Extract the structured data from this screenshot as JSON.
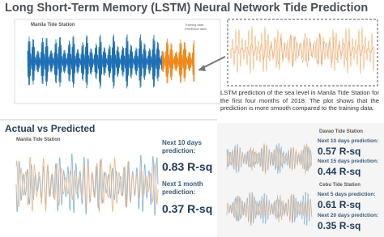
{
  "header": {
    "title": "Long Short-Term Memory (LSTM) Neural Network Tide Prediction"
  },
  "main_chart": {
    "title": "Manila Tide Station",
    "legend": [
      "Training data",
      "Prediction data"
    ]
  },
  "description": "LSTM prediction of the sea level in Manila Tide Station for the first four months of 2018. The plot shows that the prediction is more smooth compared to the training data.",
  "actual_vs_predicted": {
    "heading": "Actual vs Predicted",
    "station": "Manila Tide Station",
    "metrics": [
      {
        "label": "Next 10 days prediction:",
        "value": "0.83 R-sq"
      },
      {
        "label": "Next 1 month prediction:",
        "value": "0.37 R-sq"
      }
    ]
  },
  "davao": {
    "station": "Davao Tide Station",
    "metrics": [
      {
        "label": "Next 10 days prediction:",
        "value": "0.57 R-sq"
      },
      {
        "label": "Next 15 days prediction:",
        "value": "0.44 R-sq"
      }
    ]
  },
  "cebu": {
    "station": "Cebu Tide Station",
    "metrics": [
      {
        "label": "Next 5 days prediction:",
        "value": "0.61 R-sq"
      },
      {
        "label": "Next 20 days prediction:",
        "value": "0.35 R-sq"
      }
    ]
  }
}
